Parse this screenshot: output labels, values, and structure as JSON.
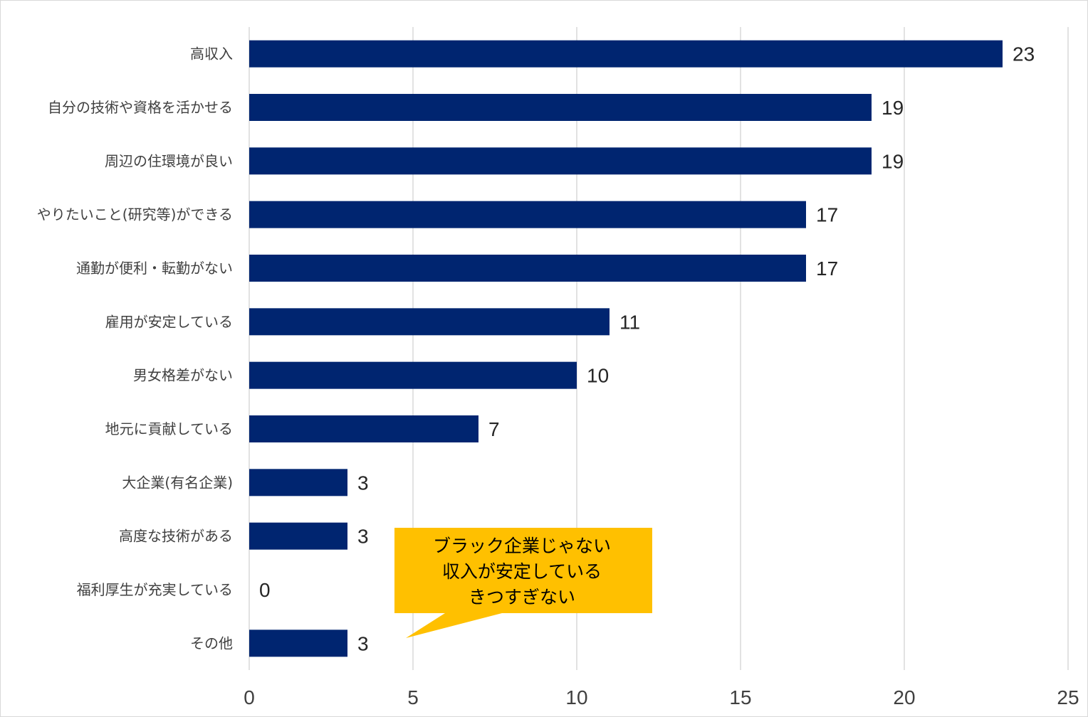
{
  "chart_data": {
    "type": "bar",
    "orientation": "horizontal",
    "categories": [
      "高収入",
      "自分の技術や資格を活かせる",
      "周辺の住環境が良い",
      "やりたいこと(研究等)ができる",
      "通勤が便利・転勤がない",
      "雇用が安定している",
      "男女格差がない",
      "地元に貢献している",
      "大企業(有名企業)",
      "高度な技術がある",
      "福利厚生が充実している",
      "その他"
    ],
    "values": [
      23,
      19,
      19,
      17,
      17,
      11,
      10,
      7,
      3,
      3,
      0,
      3
    ],
    "value_labels": [
      "23",
      "19",
      "19",
      "17",
      "17",
      "11",
      "10",
      "7",
      "3",
      "3",
      "0",
      "3"
    ],
    "xlim": [
      0,
      25
    ],
    "xticks": [
      0,
      5,
      10,
      15,
      20,
      25
    ],
    "xtick_labels": [
      "0",
      "5",
      "10",
      "15",
      "20",
      "25"
    ],
    "grid": "vertical",
    "bar_color": "#002570",
    "annotation": {
      "lines": [
        "ブラック企業じゃない",
        "収入が安定している",
        "きつすぎない"
      ],
      "points_to": "その他",
      "fill": "#FFC000"
    }
  }
}
